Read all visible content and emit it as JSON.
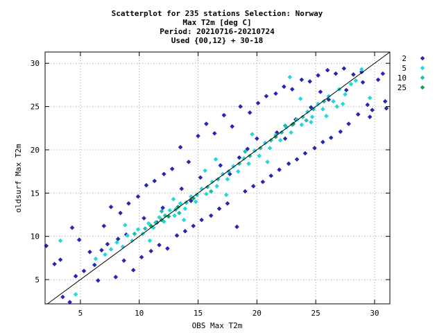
{
  "chart_data": {
    "type": "scatter",
    "title_lines": [
      "Scatterplot for  235 stations Selection: Norway",
      "Max T2m [deg C]",
      "Period: 20210716-20210724",
      "Used {00,12} + 30-18"
    ],
    "xlabel": "OBS Max T2m",
    "ylabel": "oldsurf Max T2m",
    "xlim": [
      2,
      31.3
    ],
    "ylim": [
      2.2,
      31.3
    ],
    "xticks": [
      5,
      10,
      15,
      20,
      25,
      30
    ],
    "yticks": [
      5,
      10,
      15,
      20,
      25,
      30
    ],
    "grid": true,
    "diagonal_line": true,
    "legend_position": "outside-right",
    "legend": [
      {
        "label": "2",
        "color": "#2626b4"
      },
      {
        "label": "5",
        "color": "#22d8dc"
      },
      {
        "label": "10",
        "color": "#18bfac"
      },
      {
        "label": "25",
        "color": "#16a064"
      }
    ],
    "series": [
      {
        "name": "2",
        "color": "#2626b4",
        "points": [
          [
            2.1,
            8.9
          ],
          [
            2.8,
            6.8
          ],
          [
            3.3,
            7.3
          ],
          [
            4.1,
            2.4
          ],
          [
            3.5,
            3.0
          ],
          [
            4.3,
            11.0
          ],
          [
            4.6,
            5.4
          ],
          [
            4.9,
            9.6
          ],
          [
            5.3,
            6.0
          ],
          [
            5.8,
            8.2
          ],
          [
            6.2,
            6.7
          ],
          [
            6.5,
            4.9
          ],
          [
            7.0,
            11.2
          ],
          [
            7.3,
            9.1
          ],
          [
            7.6,
            13.4
          ],
          [
            8.0,
            5.3
          ],
          [
            8.4,
            12.7
          ],
          [
            8.7,
            7.2
          ],
          [
            9.1,
            13.8
          ],
          [
            9.5,
            6.1
          ],
          [
            9.9,
            14.6
          ],
          [
            10.2,
            7.6
          ],
          [
            10.6,
            15.9
          ],
          [
            11.0,
            8.3
          ],
          [
            11.3,
            16.4
          ],
          [
            11.7,
            9.0
          ],
          [
            12.1,
            17.2
          ],
          [
            12.4,
            8.6
          ],
          [
            12.8,
            17.8
          ],
          [
            13.2,
            10.1
          ],
          [
            13.5,
            20.3
          ],
          [
            13.9,
            10.6
          ],
          [
            14.2,
            18.6
          ],
          [
            14.6,
            11.2
          ],
          [
            15.0,
            21.6
          ],
          [
            15.3,
            11.9
          ],
          [
            15.7,
            23.0
          ],
          [
            16.1,
            12.4
          ],
          [
            16.4,
            21.9
          ],
          [
            16.8,
            13.2
          ],
          [
            17.2,
            24.0
          ],
          [
            17.5,
            13.8
          ],
          [
            17.9,
            22.7
          ],
          [
            18.3,
            11.1
          ],
          [
            18.6,
            25.0
          ],
          [
            19.0,
            15.2
          ],
          [
            19.4,
            24.3
          ],
          [
            19.7,
            15.8
          ],
          [
            20.1,
            25.4
          ],
          [
            20.5,
            16.3
          ],
          [
            20.8,
            26.2
          ],
          [
            21.2,
            17.0
          ],
          [
            21.6,
            26.5
          ],
          [
            21.9,
            17.7
          ],
          [
            22.3,
            27.3
          ],
          [
            22.7,
            18.4
          ],
          [
            23.0,
            27.0
          ],
          [
            23.4,
            18.9
          ],
          [
            23.8,
            28.1
          ],
          [
            24.1,
            19.6
          ],
          [
            24.5,
            27.9
          ],
          [
            24.9,
            20.2
          ],
          [
            25.2,
            28.6
          ],
          [
            25.6,
            20.9
          ],
          [
            26.0,
            29.2
          ],
          [
            26.3,
            21.4
          ],
          [
            26.7,
            28.8
          ],
          [
            27.1,
            22.1
          ],
          [
            27.4,
            29.4
          ],
          [
            27.8,
            23.0
          ],
          [
            28.2,
            28.7
          ],
          [
            28.6,
            24.1
          ],
          [
            29.0,
            27.8
          ],
          [
            29.4,
            25.2
          ],
          [
            29.8,
            24.6
          ],
          [
            30.3,
            28.1
          ],
          [
            30.7,
            28.8
          ],
          [
            31.0,
            24.8
          ],
          [
            30.9,
            25.6
          ],
          [
            29.6,
            23.8
          ],
          [
            8.9,
            10.2
          ],
          [
            10.4,
            12.1
          ],
          [
            12.0,
            13.3
          ],
          [
            13.6,
            15.5
          ],
          [
            15.2,
            16.8
          ],
          [
            16.9,
            18.2
          ],
          [
            18.5,
            19.1
          ],
          [
            20.0,
            21.3
          ],
          [
            21.7,
            22.0
          ],
          [
            23.3,
            23.5
          ],
          [
            24.6,
            24.9
          ],
          [
            26.1,
            25.8
          ],
          [
            6.8,
            8.4
          ],
          [
            8.2,
            9.7
          ],
          [
            11.5,
            11.6
          ],
          [
            14.4,
            14.1
          ],
          [
            17.7,
            17.2
          ],
          [
            19.2,
            20.1
          ],
          [
            22.4,
            21.3
          ],
          [
            25.4,
            26.7
          ],
          [
            27.6,
            26.9
          ],
          [
            28.9,
            29.0
          ]
        ]
      },
      {
        "name": "5",
        "color": "#22d8dc",
        "points": [
          [
            3.3,
            9.5
          ],
          [
            4.6,
            3.3
          ],
          [
            6.3,
            7.4
          ],
          [
            7.1,
            7.9
          ],
          [
            7.6,
            8.5
          ],
          [
            8.1,
            9.3
          ],
          [
            8.6,
            8.8
          ],
          [
            9.0,
            10.1
          ],
          [
            9.4,
            9.5
          ],
          [
            9.9,
            10.8
          ],
          [
            10.3,
            10.3
          ],
          [
            10.8,
            11.5
          ],
          [
            11.2,
            11.0
          ],
          [
            11.7,
            12.2
          ],
          [
            12.1,
            11.7
          ],
          [
            12.6,
            13.0
          ],
          [
            13.0,
            12.4
          ],
          [
            13.5,
            13.8
          ],
          [
            13.9,
            13.2
          ],
          [
            14.4,
            14.6
          ],
          [
            14.8,
            14.0
          ],
          [
            15.3,
            15.5
          ],
          [
            15.7,
            14.9
          ],
          [
            16.2,
            16.3
          ],
          [
            16.6,
            15.8
          ],
          [
            17.1,
            17.2
          ],
          [
            17.5,
            16.6
          ],
          [
            18.0,
            18.1
          ],
          [
            18.4,
            17.5
          ],
          [
            18.9,
            19.0
          ],
          [
            19.3,
            18.4
          ],
          [
            19.8,
            19.9
          ],
          [
            20.2,
            19.3
          ],
          [
            20.7,
            20.8
          ],
          [
            21.1,
            20.2
          ],
          [
            21.6,
            21.7
          ],
          [
            22.0,
            21.1
          ],
          [
            22.5,
            22.6
          ],
          [
            22.9,
            22.0
          ],
          [
            23.4,
            23.5
          ],
          [
            23.8,
            22.9
          ],
          [
            24.3,
            24.4
          ],
          [
            24.7,
            23.8
          ],
          [
            25.2,
            25.3
          ],
          [
            25.6,
            24.7
          ],
          [
            26.1,
            26.2
          ],
          [
            26.5,
            25.6
          ],
          [
            27.0,
            27.0
          ],
          [
            27.5,
            26.4
          ],
          [
            28.0,
            27.6
          ],
          [
            28.4,
            28.0
          ],
          [
            28.9,
            29.3
          ],
          [
            22.8,
            28.4
          ],
          [
            24.6,
            23.2
          ],
          [
            26.8,
            25.0
          ],
          [
            19.6,
            21.8
          ],
          [
            17.4,
            14.8
          ],
          [
            15.6,
            17.6
          ],
          [
            12.9,
            14.3
          ],
          [
            10.9,
            9.5
          ],
          [
            8.8,
            11.3
          ],
          [
            13.8,
            11.9
          ],
          [
            16.5,
            18.9
          ],
          [
            20.9,
            18.6
          ],
          [
            23.7,
            25.9
          ],
          [
            25.9,
            23.9
          ],
          [
            27.3,
            25.3
          ],
          [
            29.6,
            26.0
          ]
        ]
      },
      {
        "name": "10",
        "color": "#18bfac",
        "points": [
          [
            9.6,
            10.3
          ],
          [
            10.5,
            10.9
          ],
          [
            11.4,
            11.6
          ],
          [
            12.2,
            12.4
          ],
          [
            13.1,
            13.1
          ],
          [
            14.0,
            13.9
          ],
          [
            14.9,
            14.8
          ],
          [
            15.8,
            15.7
          ],
          [
            16.7,
            16.6
          ],
          [
            17.6,
            17.5
          ],
          [
            18.5,
            18.4
          ],
          [
            19.4,
            19.3
          ],
          [
            20.3,
            20.2
          ],
          [
            21.2,
            21.1
          ],
          [
            22.1,
            22.0
          ],
          [
            23.0,
            22.9
          ],
          [
            23.9,
            23.8
          ],
          [
            24.8,
            24.7
          ],
          [
            25.7,
            25.6
          ],
          [
            11.9,
            12.9
          ],
          [
            13.4,
            12.7
          ],
          [
            16.1,
            15.2
          ],
          [
            19.0,
            19.8
          ],
          [
            22.4,
            22.8
          ],
          [
            24.2,
            23.4
          ]
        ]
      },
      {
        "name": "25",
        "color": "#16a064",
        "points": [
          [
            11.0,
            11.2
          ],
          [
            11.9,
            11.9
          ],
          [
            12.5,
            12.3
          ],
          [
            13.3,
            13.4
          ],
          [
            14.6,
            14.4
          ],
          [
            21.6,
            21.5
          ],
          [
            23.1,
            23.0
          ]
        ]
      }
    ]
  }
}
